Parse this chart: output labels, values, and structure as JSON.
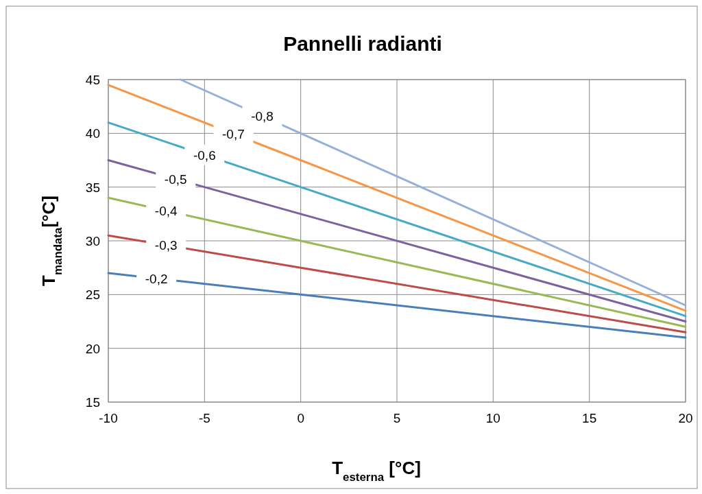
{
  "chart_data": {
    "type": "line",
    "title": "Pannelli radianti",
    "xlabel": "T$_{esterna}$ [°C]",
    "ylabel": "T$_{mandata}$[°C]",
    "xlim": [
      -10,
      20
    ],
    "xticks": [
      -10,
      -5,
      0,
      5,
      10,
      15,
      20
    ],
    "ylim": [
      15,
      45
    ],
    "yticks": [
      15,
      20,
      25,
      30,
      35,
      40,
      45
    ],
    "grid": true,
    "marker": "none",
    "line_style": "solid",
    "series": [
      {
        "color": "#4a7ebb",
        "x": [
          -10,
          0,
          20
        ],
        "values": [
          27,
          25,
          21
        ]
      },
      {
        "color": "#be4b48",
        "x": [
          -10,
          0,
          20
        ],
        "values": [
          30.5,
          27.5,
          21.5
        ]
      },
      {
        "color": "#98b954",
        "x": [
          -10,
          0,
          20
        ],
        "values": [
          34,
          30,
          22
        ]
      },
      {
        "color": "#7d60a0",
        "x": [
          -10,
          0,
          20
        ],
        "values": [
          37.5,
          32.5,
          22.5
        ]
      },
      {
        "color": "#46aac5",
        "x": [
          -10,
          0,
          20
        ],
        "values": [
          41,
          35,
          23
        ]
      },
      {
        "color": "#f79646",
        "x": [
          -10,
          0,
          20
        ],
        "values": [
          44.5,
          37.5,
          23.5
        ]
      },
      {
        "color": "#94b0d9",
        "x": [
          -6.25,
          0,
          20
        ],
        "values": [
          45,
          40,
          24
        ]
      }
    ],
    "annotations": [
      {
        "text": "-0,2",
        "x": -7.5,
        "y": 26.5
      },
      {
        "text": "-0,3",
        "x": -7,
        "y": 29.6
      },
      {
        "text": "-0,4",
        "x": -7,
        "y": 32.8
      },
      {
        "text": "-0,5",
        "x": -6.5,
        "y": 35.75
      },
      {
        "text": "-0,6",
        "x": -5,
        "y": 38
      },
      {
        "text": "-0,7",
        "x": -3.5,
        "y": 39.95
      },
      {
        "text": "-0,8",
        "x": -2,
        "y": 41.6
      }
    ]
  }
}
